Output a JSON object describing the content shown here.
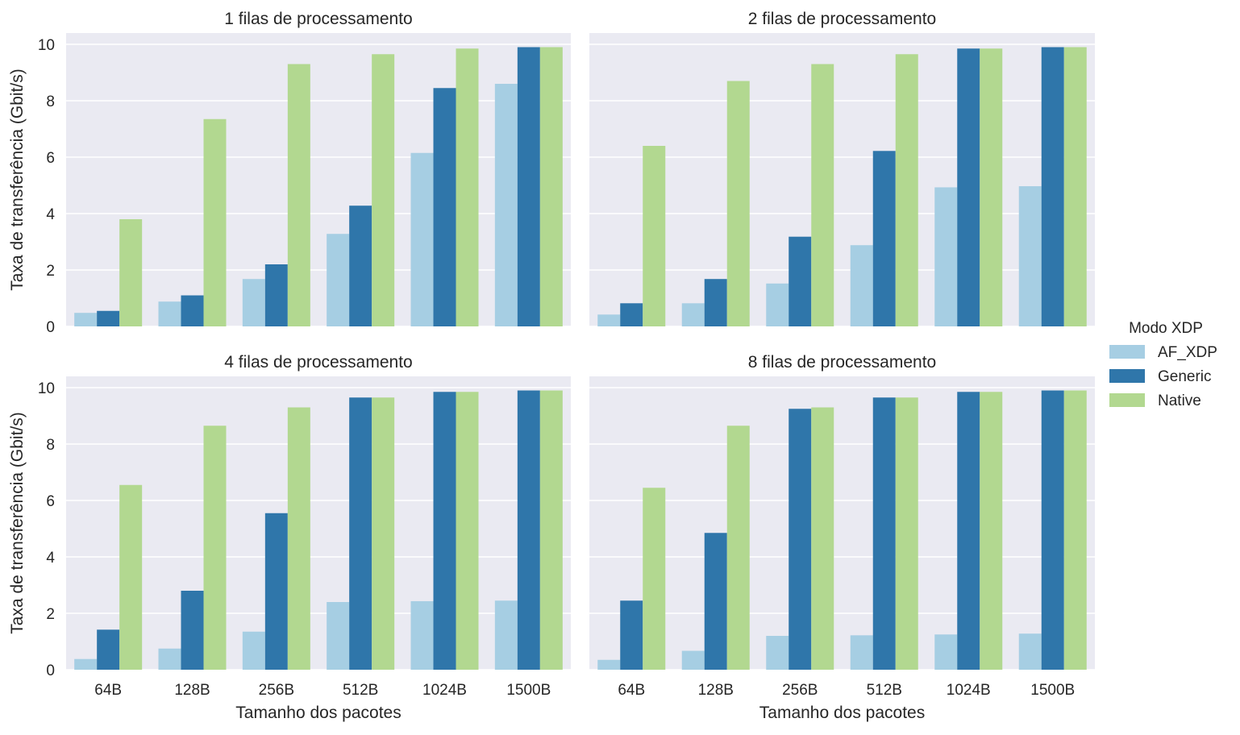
{
  "chart_data": {
    "type": "bar",
    "ylabel": "Taxa de transferência (Gbit/s)",
    "xlabel": "Tamanho dos pacotes",
    "ylim": [
      0,
      10.4
    ],
    "yticks": [
      0,
      2,
      4,
      6,
      8,
      10
    ],
    "grid": true,
    "categories": [
      "64B",
      "128B",
      "256B",
      "512B",
      "1024B",
      "1500B"
    ],
    "legend": {
      "title": "Modo XDP",
      "placement": "right",
      "entries": [
        "AF_XDP",
        "Generic",
        "Native"
      ]
    },
    "colors": {
      "AF_XDP": "#a6cee3",
      "Generic": "#2f76aa",
      "Native": "#b2d890",
      "panel_background": "#eaeaf2",
      "grid": "#ffffff"
    },
    "panels": [
      {
        "title": "1 filas de processamento",
        "series": [
          {
            "name": "AF_XDP",
            "values": [
              0.48,
              0.88,
              1.68,
              3.28,
              6.15,
              8.6
            ]
          },
          {
            "name": "Generic",
            "values": [
              0.55,
              1.1,
              2.2,
              4.28,
              8.45,
              9.9
            ]
          },
          {
            "name": "Native",
            "values": [
              3.8,
              7.35,
              9.3,
              9.65,
              9.85,
              9.9
            ]
          }
        ]
      },
      {
        "title": "2 filas de processamento",
        "series": [
          {
            "name": "AF_XDP",
            "values": [
              0.42,
              0.82,
              1.52,
              2.88,
              4.93,
              4.97
            ]
          },
          {
            "name": "Generic",
            "values": [
              0.82,
              1.68,
              3.18,
              6.22,
              9.85,
              9.9
            ]
          },
          {
            "name": "Native",
            "values": [
              6.4,
              8.7,
              9.3,
              9.65,
              9.85,
              9.9
            ]
          }
        ]
      },
      {
        "title": "4 filas de processamento",
        "series": [
          {
            "name": "AF_XDP",
            "values": [
              0.38,
              0.75,
              1.35,
              2.4,
              2.43,
              2.45
            ]
          },
          {
            "name": "Generic",
            "values": [
              1.42,
              2.8,
              5.55,
              9.65,
              9.85,
              9.9
            ]
          },
          {
            "name": "Native",
            "values": [
              6.55,
              8.65,
              9.3,
              9.65,
              9.85,
              9.9
            ]
          }
        ]
      },
      {
        "title": "8 filas de processamento",
        "series": [
          {
            "name": "AF_XDP",
            "values": [
              0.35,
              0.67,
              1.2,
              1.22,
              1.25,
              1.28
            ]
          },
          {
            "name": "Generic",
            "values": [
              2.45,
              4.85,
              9.25,
              9.65,
              9.85,
              9.9
            ]
          },
          {
            "name": "Native",
            "values": [
              6.45,
              8.65,
              9.3,
              9.65,
              9.85,
              9.9
            ]
          }
        ]
      }
    ]
  }
}
